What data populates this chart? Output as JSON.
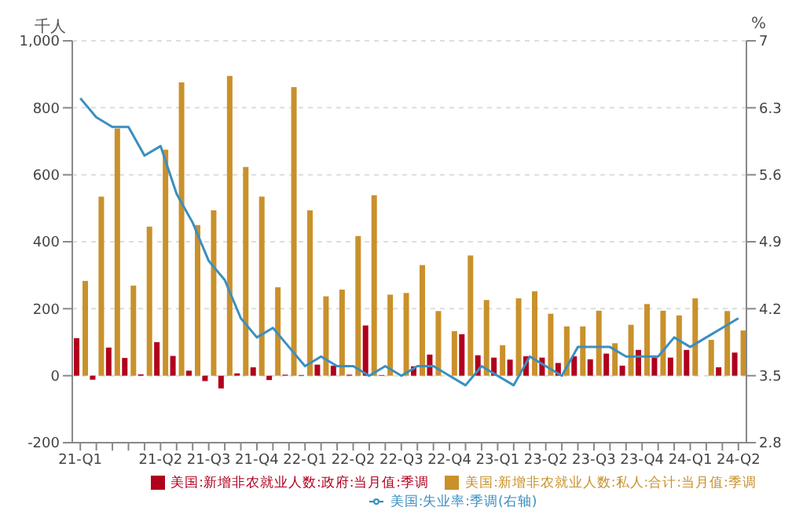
{
  "chart_data": {
    "type": "bar",
    "categories": [
      "21-Q1",
      null,
      null,
      null,
      null,
      "21-Q2",
      null,
      null,
      "21-Q3",
      null,
      null,
      "21-Q4",
      null,
      null,
      "22-Q1",
      null,
      null,
      "22-Q2",
      null,
      null,
      "22-Q3",
      null,
      null,
      "22-Q4",
      null,
      null,
      "23-Q1",
      null,
      null,
      "23-Q2",
      null,
      null,
      "23-Q3",
      null,
      null,
      "23-Q4",
      null,
      null,
      "24-Q1",
      null,
      null,
      "24-Q2"
    ],
    "series": [
      {
        "name": "美国:新增非农就业人数:政府:当月值:季调",
        "color": "#b0001e",
        "values": [
          112,
          -12,
          84,
          53,
          4,
          100,
          59,
          15,
          -16,
          -38,
          7,
          25,
          -13,
          3,
          2,
          33,
          30,
          3,
          150,
          2,
          null,
          28,
          63,
          null,
          124,
          61,
          54,
          48,
          58,
          54,
          38,
          58,
          49,
          66,
          30,
          77,
          54,
          54,
          77,
          null,
          25,
          69
        ]
      },
      {
        "name": "美国:新增非农就业人数:私人:合计:当月值:季调",
        "color": "#c9912b",
        "values": [
          283,
          535,
          738,
          269,
          445,
          675,
          876,
          450,
          494,
          895,
          623,
          535,
          264,
          862,
          494,
          237,
          257,
          417,
          539,
          242,
          247,
          330,
          193,
          133,
          359,
          226,
          91,
          231,
          252,
          185,
          147,
          147,
          194,
          97,
          152,
          214,
          194,
          180,
          231,
          107,
          193,
          135
        ]
      },
      {
        "name": "美国:失业率:季调(右轴)",
        "type": "line",
        "axis": "y2",
        "color": "#3a8fc0",
        "values": [
          6.4,
          6.2,
          6.1,
          6.1,
          5.8,
          5.9,
          5.4,
          5.1,
          4.7,
          4.5,
          4.1,
          3.9,
          4.0,
          3.8,
          3.6,
          3.7,
          3.6,
          3.6,
          3.5,
          3.6,
          3.5,
          3.6,
          3.6,
          3.5,
          3.4,
          3.6,
          3.5,
          3.4,
          3.7,
          3.6,
          3.5,
          3.8,
          3.8,
          3.8,
          3.7,
          3.7,
          3.7,
          3.9,
          3.8,
          3.9,
          4.0,
          4.1
        ]
      }
    ],
    "ylabel": "千人",
    "y2label": "%",
    "ylim": [
      -200,
      1000
    ],
    "yticks": [
      -200,
      0,
      200,
      400,
      600,
      800,
      {
        "value": 1000,
        "label": "1,000"
      }
    ],
    "y2lim": [
      2.8,
      7
    ],
    "y2ticks": [
      2.8,
      3.5,
      4.2,
      4.9,
      5.6,
      6.3,
      7
    ],
    "grid": "y",
    "legend": "bottom",
    "marker": "none",
    "line_style": "solid"
  }
}
